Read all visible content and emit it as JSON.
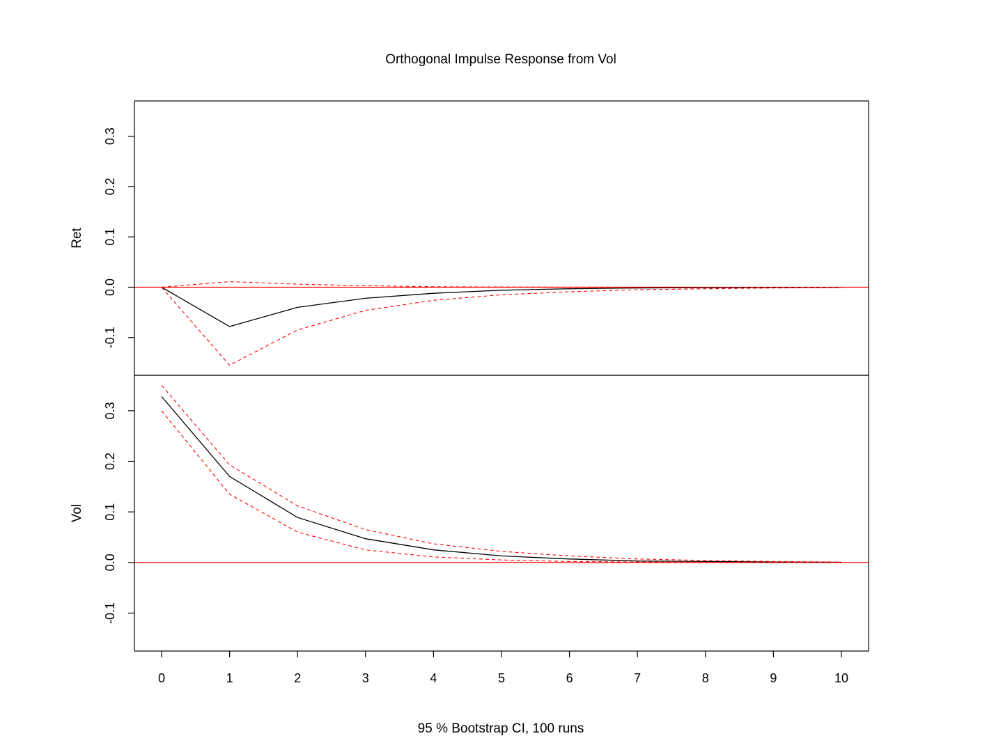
{
  "title": "Orthogonal Impulse Response from Vol",
  "xlabel": "95 % Bootstrap CI,  100 runs",
  "colors": {
    "response": "#000000",
    "ci": "#ff0000",
    "zero_line": "#ff0000",
    "frame": "#000000",
    "background": "#ffffff"
  },
  "chart_data": {
    "type": "line",
    "title": "Orthogonal Impulse Response from Vol",
    "xlabel": "95 % Bootstrap CI,  100 runs",
    "x": [
      0,
      1,
      2,
      3,
      4,
      5,
      6,
      7,
      8,
      9,
      10
    ],
    "xlim": [
      -0.4,
      10.4
    ],
    "x_ticks": [
      "0",
      "1",
      "2",
      "3",
      "4",
      "5",
      "6",
      "7",
      "8",
      "9",
      "10"
    ],
    "ylim": [
      -0.175,
      0.37
    ],
    "y_ticks": [
      "-0.1",
      "0.0",
      "0.1",
      "0.2",
      "0.3"
    ],
    "y_tick_values": [
      -0.1,
      0.0,
      0.1,
      0.2,
      0.3
    ],
    "grid": false,
    "panels": [
      {
        "ylabel": "Ret",
        "series": [
          {
            "role": "response",
            "values": [
              0.0,
              -0.078,
              -0.04,
              -0.022,
              -0.012,
              -0.006,
              -0.003,
              -0.0015,
              -0.0008,
              -0.0004,
              -0.0002
            ]
          },
          {
            "role": "upper",
            "values": [
              0.0,
              0.011,
              0.006,
              0.003,
              0.001,
              0.0005,
              0.0002,
              0.0001,
              0.0,
              0.0,
              0.0
            ]
          },
          {
            "role": "lower",
            "values": [
              0.0,
              -0.155,
              -0.085,
              -0.046,
              -0.026,
              -0.015,
              -0.009,
              -0.005,
              -0.003,
              -0.0015,
              -0.0008
            ]
          }
        ]
      },
      {
        "ylabel": "Vol",
        "series": [
          {
            "role": "response",
            "values": [
              0.328,
              0.17,
              0.089,
              0.047,
              0.025,
              0.013,
              0.007,
              0.003,
              0.002,
              0.001,
              0.0005
            ]
          },
          {
            "role": "upper",
            "values": [
              0.35,
              0.193,
              0.112,
              0.065,
              0.037,
              0.022,
              0.013,
              0.007,
              0.004,
              0.002,
              0.001
            ]
          },
          {
            "role": "lower",
            "values": [
              0.3,
              0.135,
              0.06,
              0.025,
              0.011,
              0.005,
              0.002,
              0.001,
              0.0005,
              0.0002,
              0.0001
            ]
          }
        ]
      }
    ]
  }
}
